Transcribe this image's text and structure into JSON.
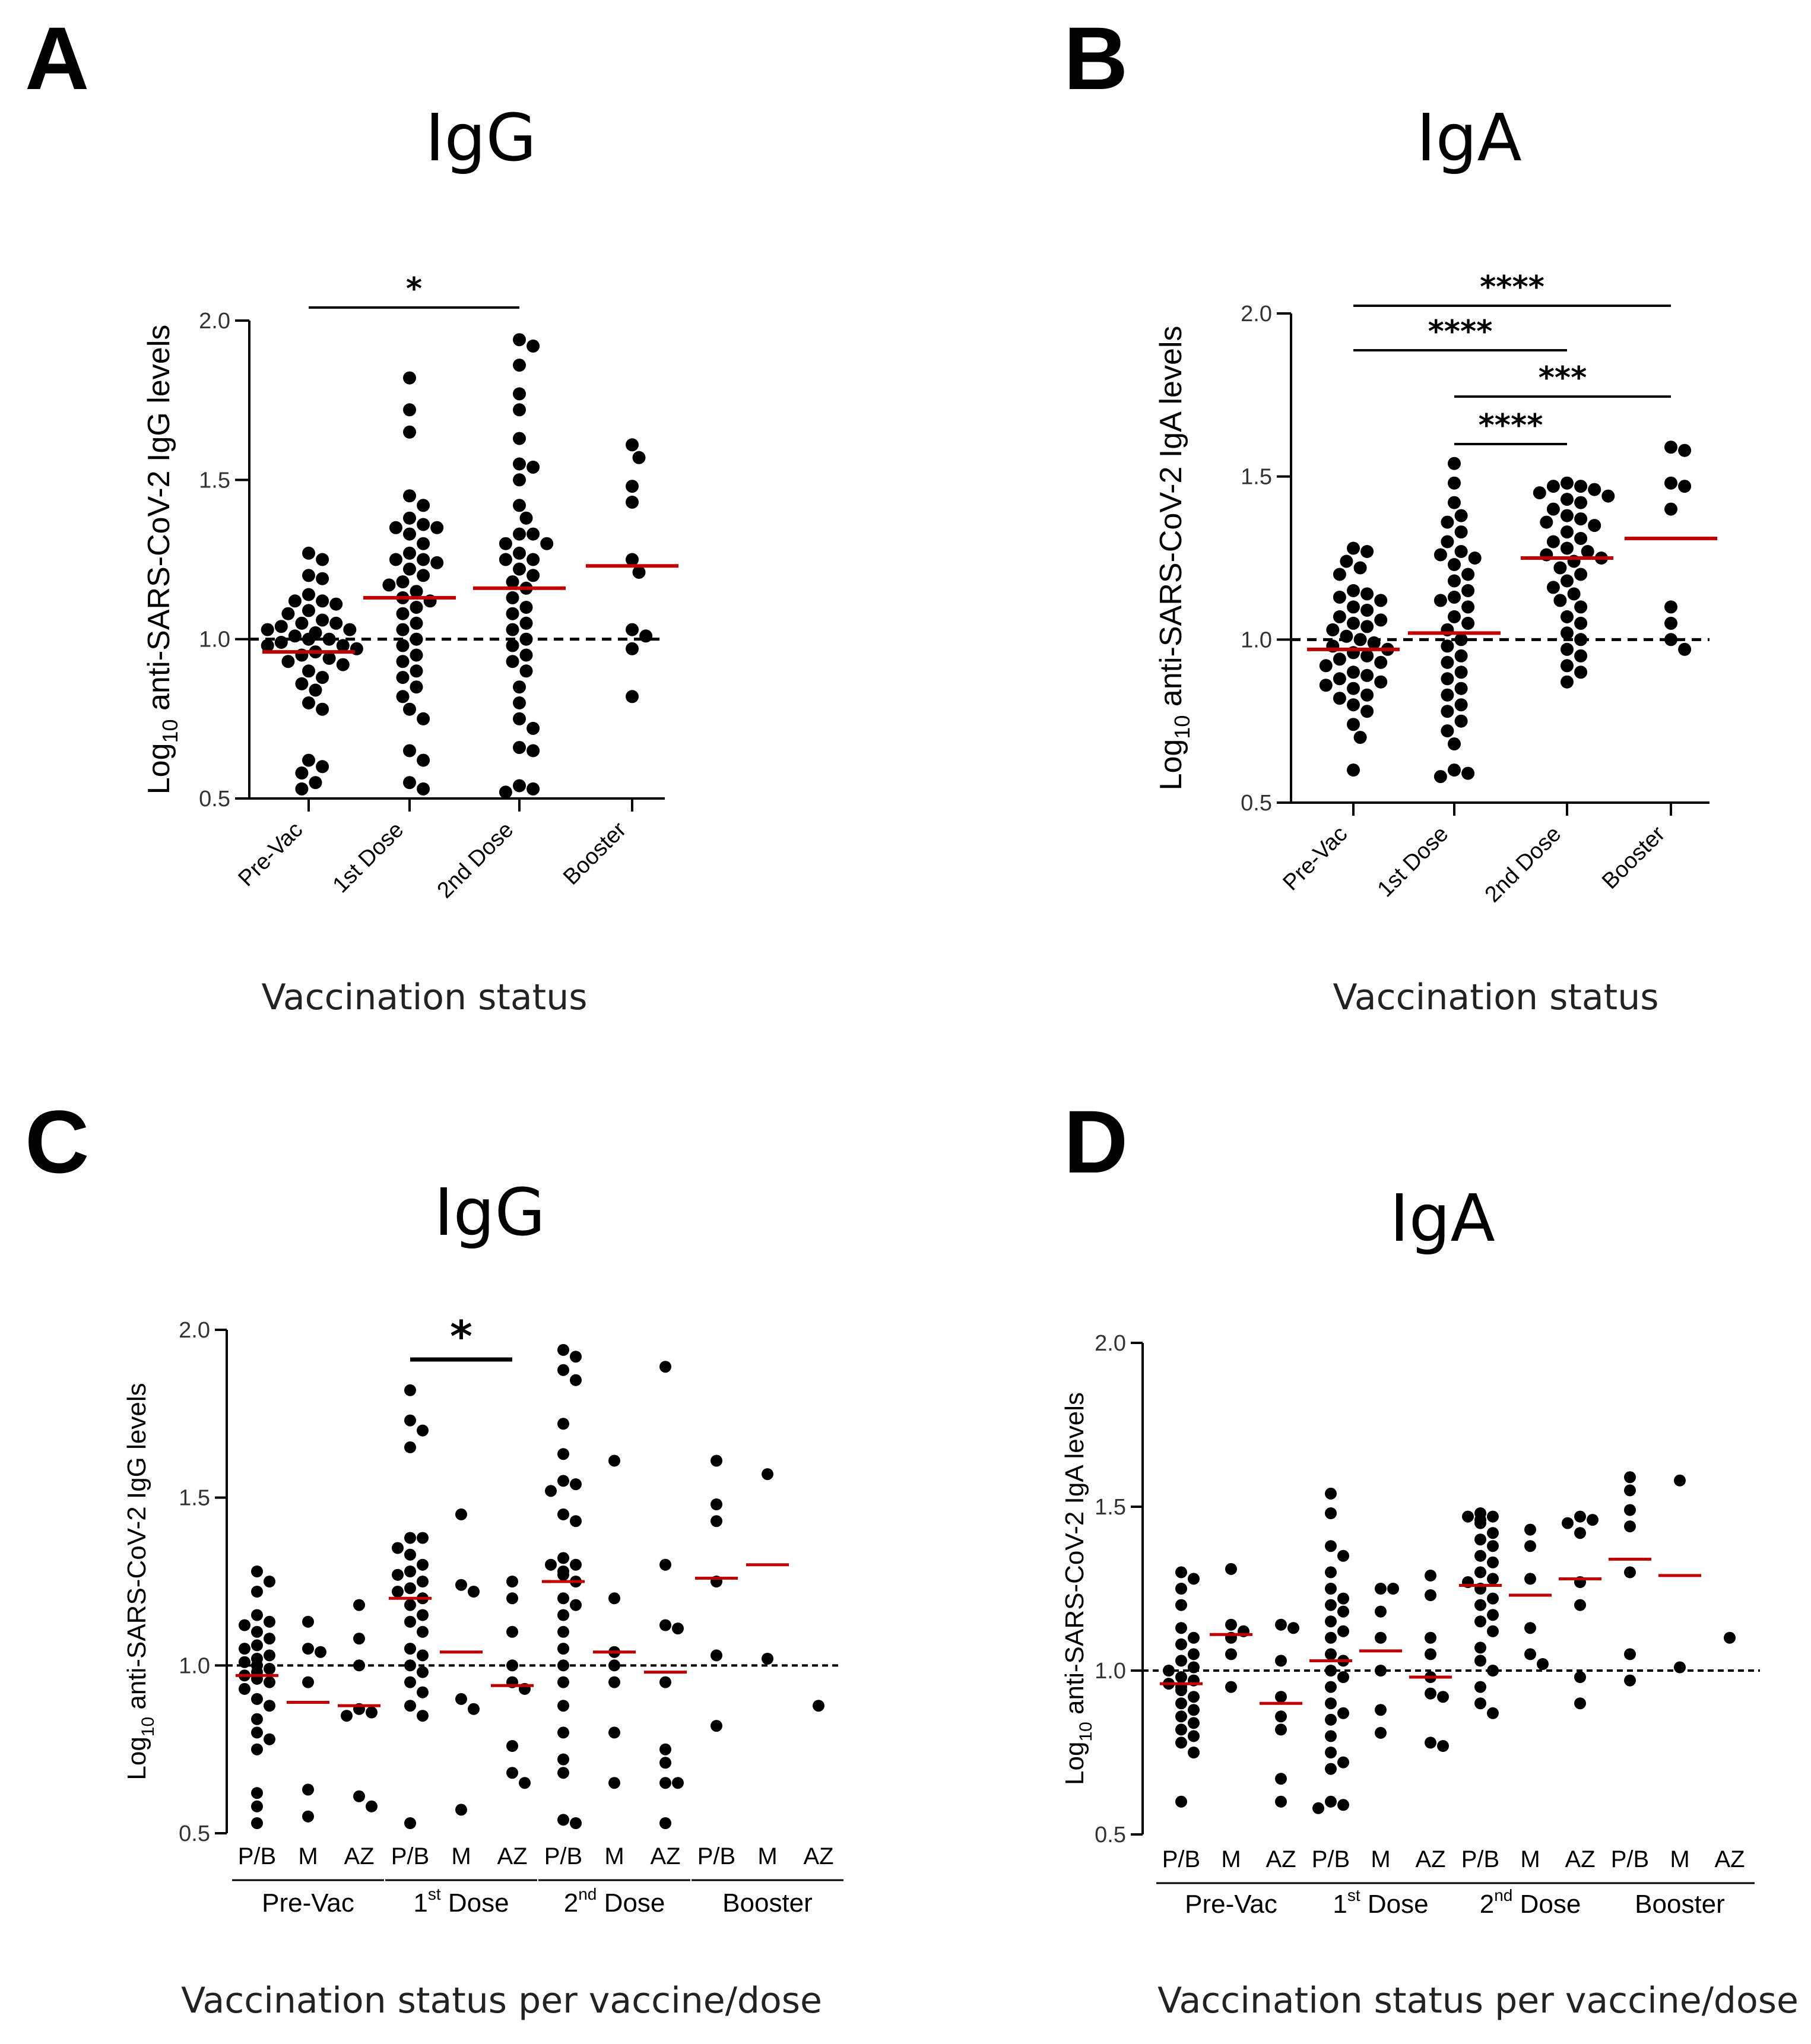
{
  "figure": {
    "colors": {
      "points": "#000000",
      "median": "#c00000",
      "axis": "#000000",
      "reference": "#000000"
    }
  },
  "chart_data": [
    {
      "panel": "A",
      "type": "scatter",
      "title": "IgG",
      "ylabel_prefix": "Log",
      "ylabel_sub": "10",
      "ylabel_rest": " anti-SARS-CoV-2 IgG levels",
      "xlabel": "Vaccination status",
      "ylim": [
        0.5,
        2.0
      ],
      "yticks": [
        "0.5",
        "1.0",
        "1.5",
        "2.0"
      ],
      "reference_line": 1.0,
      "categories": [
        "Pre-Vac",
        "1st Dose",
        "2nd Dose",
        "Booster"
      ],
      "series": [
        {
          "name": "Pre-Vac",
          "median": 0.96,
          "values": [
            1.27,
            1.25,
            1.2,
            1.19,
            1.14,
            1.12,
            1.12,
            1.11,
            1.09,
            1.08,
            1.06,
            1.05,
            1.05,
            1.04,
            1.03,
            1.03,
            1.02,
            1.01,
            1.0,
            1.0,
            0.99,
            0.98,
            0.98,
            0.97,
            0.96,
            0.95,
            0.94,
            0.93,
            0.92,
            0.9,
            0.88,
            0.86,
            0.84,
            0.8,
            0.78,
            0.62,
            0.6,
            0.58,
            0.55,
            0.53
          ]
        },
        {
          "name": "1st Dose",
          "median": 1.13,
          "values": [
            1.82,
            1.72,
            1.65,
            1.45,
            1.42,
            1.38,
            1.36,
            1.35,
            1.35,
            1.33,
            1.3,
            1.27,
            1.25,
            1.25,
            1.24,
            1.22,
            1.2,
            1.18,
            1.17,
            1.15,
            1.13,
            1.12,
            1.1,
            1.08,
            1.05,
            1.03,
            1.0,
            0.98,
            0.95,
            0.93,
            0.9,
            0.88,
            0.85,
            0.82,
            0.78,
            0.75,
            0.65,
            0.62,
            0.55,
            0.53
          ]
        },
        {
          "name": "2nd Dose",
          "median": 1.16,
          "values": [
            1.94,
            1.92,
            1.86,
            1.77,
            1.72,
            1.63,
            1.55,
            1.54,
            1.5,
            1.42,
            1.38,
            1.33,
            1.33,
            1.3,
            1.3,
            1.27,
            1.25,
            1.25,
            1.22,
            1.2,
            1.18,
            1.16,
            1.13,
            1.1,
            1.08,
            1.05,
            1.03,
            1.0,
            0.98,
            0.95,
            0.93,
            0.9,
            0.85,
            0.8,
            0.75,
            0.72,
            0.66,
            0.65,
            0.54,
            0.53,
            0.52
          ]
        },
        {
          "name": "Booster",
          "median": 1.23,
          "values": [
            1.61,
            1.57,
            1.48,
            1.43,
            1.25,
            1.21,
            1.03,
            1.01,
            0.97,
            0.82
          ]
        }
      ],
      "significance": [
        {
          "from": "Pre-Vac",
          "to": "2nd Dose",
          "label": "*"
        }
      ]
    },
    {
      "panel": "B",
      "type": "scatter",
      "title": "IgA",
      "ylabel_prefix": "Log",
      "ylabel_sub": "10",
      "ylabel_rest": " anti-SARS-CoV-2 IgA levels",
      "xlabel": "Vaccination status",
      "ylim": [
        0.5,
        2.0
      ],
      "yticks": [
        "0.5",
        "1.0",
        "1.5",
        "2.0"
      ],
      "reference_line": 1.0,
      "categories": [
        "Pre-Vac",
        "1st Dose",
        "2nd Dose",
        "Booster"
      ],
      "series": [
        {
          "name": "Pre-Vac",
          "median": 0.97,
          "values": [
            1.28,
            1.27,
            1.24,
            1.22,
            1.2,
            1.15,
            1.14,
            1.13,
            1.12,
            1.1,
            1.09,
            1.07,
            1.06,
            1.05,
            1.04,
            1.03,
            1.01,
            1.0,
            0.99,
            0.98,
            0.97,
            0.96,
            0.95,
            0.94,
            0.93,
            0.92,
            0.9,
            0.89,
            0.88,
            0.87,
            0.86,
            0.85,
            0.83,
            0.82,
            0.8,
            0.78,
            0.74,
            0.7,
            0.6
          ]
        },
        {
          "name": "1st Dose",
          "median": 1.02,
          "values": [
            1.54,
            1.48,
            1.42,
            1.38,
            1.36,
            1.33,
            1.3,
            1.27,
            1.26,
            1.25,
            1.23,
            1.2,
            1.18,
            1.15,
            1.13,
            1.12,
            1.1,
            1.07,
            1.05,
            1.03,
            1.0,
            0.98,
            0.95,
            0.93,
            0.9,
            0.88,
            0.85,
            0.83,
            0.8,
            0.78,
            0.75,
            0.72,
            0.68,
            0.6,
            0.59,
            0.58
          ]
        },
        {
          "name": "2nd Dose",
          "median": 1.25,
          "values": [
            1.48,
            1.47,
            1.47,
            1.46,
            1.45,
            1.44,
            1.43,
            1.42,
            1.4,
            1.38,
            1.37,
            1.36,
            1.35,
            1.33,
            1.31,
            1.3,
            1.28,
            1.27,
            1.26,
            1.25,
            1.24,
            1.22,
            1.2,
            1.18,
            1.16,
            1.14,
            1.12,
            1.1,
            1.07,
            1.05,
            1.02,
            1.0,
            0.97,
            0.95,
            0.92,
            0.9,
            0.87
          ]
        },
        {
          "name": "Booster",
          "median": 1.31,
          "values": [
            1.59,
            1.58,
            1.48,
            1.47,
            1.4,
            1.1,
            1.05,
            1.0,
            0.97
          ]
        }
      ],
      "significance": [
        {
          "from": "Pre-Vac",
          "to": "Booster",
          "label": "****"
        },
        {
          "from": "Pre-Vac",
          "to": "2nd Dose",
          "label": "****"
        },
        {
          "from": "1st Dose",
          "to": "Booster",
          "label": "***"
        },
        {
          "from": "1st Dose",
          "to": "2nd Dose",
          "label": "****"
        }
      ]
    },
    {
      "panel": "C",
      "type": "scatter",
      "title": "IgG",
      "ylabel_prefix": "Log",
      "ylabel_sub": "10",
      "ylabel_rest": " anti-SARS-CoV-2 IgG levels",
      "xlabel": "Vaccination status per vaccine/dose",
      "ylim": [
        0.5,
        2.0
      ],
      "yticks": [
        "0.5",
        "1.0",
        "1.5",
        "2.0"
      ],
      "reference_line": 1.0,
      "groups": [
        {
          "pre": "Pre-Vac",
          "sup": "",
          "post": ""
        },
        {
          "pre": "1",
          "sup": "st",
          "post": " Dose"
        },
        {
          "pre": "2",
          "sup": "nd",
          "post": " Dose"
        },
        {
          "pre": "Booster",
          "sup": "",
          "post": ""
        }
      ],
      "vaccines": [
        "P/B",
        "M",
        "AZ"
      ],
      "series": [
        {
          "name": "Pre-Vac P/B",
          "median": 0.97,
          "values": [
            1.28,
            1.25,
            1.22,
            1.15,
            1.13,
            1.12,
            1.1,
            1.08,
            1.06,
            1.05,
            1.03,
            1.02,
            1.01,
            1.0,
            0.99,
            0.98,
            0.97,
            0.96,
            0.95,
            0.93,
            0.9,
            0.88,
            0.84,
            0.8,
            0.78,
            0.75,
            0.62,
            0.58,
            0.53
          ]
        },
        {
          "name": "Pre-Vac M",
          "median": 0.89,
          "values": [
            1.13,
            1.05,
            1.04,
            0.95,
            0.63,
            0.55
          ]
        },
        {
          "name": "Pre-Vac AZ",
          "median": 0.88,
          "values": [
            1.18,
            1.08,
            1.0,
            0.87,
            0.86,
            0.85,
            0.61,
            0.58
          ]
        },
        {
          "name": "1st Dose P/B",
          "median": 1.2,
          "values": [
            1.82,
            1.73,
            1.7,
            1.65,
            1.38,
            1.38,
            1.35,
            1.33,
            1.3,
            1.28,
            1.27,
            1.25,
            1.23,
            1.22,
            1.2,
            1.18,
            1.15,
            1.13,
            1.1,
            1.05,
            1.03,
            1.0,
            0.98,
            0.95,
            0.92,
            0.88,
            0.85,
            0.53
          ]
        },
        {
          "name": "1st Dose M",
          "median": 1.04,
          "values": [
            1.45,
            1.24,
            1.22,
            0.9,
            0.87,
            0.57
          ]
        },
        {
          "name": "1st Dose AZ",
          "median": 0.94,
          "values": [
            1.25,
            1.2,
            1.1,
            1.0,
            0.95,
            0.93,
            0.76,
            0.68,
            0.65
          ]
        },
        {
          "name": "2nd Dose P/B",
          "median": 1.25,
          "values": [
            1.94,
            1.92,
            1.88,
            1.85,
            1.72,
            1.63,
            1.55,
            1.54,
            1.52,
            1.45,
            1.43,
            1.32,
            1.3,
            1.3,
            1.28,
            1.27,
            1.25,
            1.2,
            1.18,
            1.15,
            1.1,
            1.05,
            1.0,
            0.95,
            0.88,
            0.8,
            0.72,
            0.68,
            0.54,
            0.53
          ]
        },
        {
          "name": "2nd Dose M",
          "median": 1.04,
          "values": [
            1.61,
            1.2,
            1.04,
            1.0,
            0.95,
            0.8,
            0.65
          ]
        },
        {
          "name": "2nd Dose AZ",
          "median": 0.98,
          "values": [
            1.89,
            1.3,
            1.12,
            1.11,
            0.95,
            0.75,
            0.71,
            0.65,
            0.65,
            0.53
          ]
        },
        {
          "name": "Booster P/B",
          "median": 1.26,
          "values": [
            1.61,
            1.48,
            1.43,
            1.25,
            1.03,
            0.82
          ]
        },
        {
          "name": "Booster M",
          "median": 1.3,
          "values": [
            1.57,
            1.02
          ]
        },
        {
          "name": "Booster AZ",
          "median": null,
          "values": [
            0.88
          ]
        }
      ],
      "significance": [
        {
          "from": "1st Dose P/B",
          "to": "1st Dose AZ",
          "label": "*"
        }
      ]
    },
    {
      "panel": "D",
      "type": "scatter",
      "title": "IgA",
      "ylabel_prefix": "Log",
      "ylabel_sub": "10",
      "ylabel_rest": " anti-SARS-CoV-2 IgA levels",
      "xlabel": "Vaccination status per vaccine/dose",
      "ylim": [
        0.5,
        2.0
      ],
      "yticks": [
        "0.5",
        "1.0",
        "1.5",
        "2.0"
      ],
      "reference_line": 1.0,
      "groups": [
        {
          "pre": "Pre-Vac",
          "sup": "",
          "post": ""
        },
        {
          "pre": "1",
          "sup": "st",
          "post": " Dose"
        },
        {
          "pre": "2",
          "sup": "nd",
          "post": " Dose"
        },
        {
          "pre": "Booster",
          "sup": "",
          "post": ""
        }
      ],
      "vaccines": [
        "P/B",
        "M",
        "AZ"
      ],
      "series": [
        {
          "name": "Pre-Vac P/B",
          "median": 0.96,
          "values": [
            1.3,
            1.28,
            1.25,
            1.2,
            1.13,
            1.1,
            1.08,
            1.05,
            1.03,
            1.01,
            1.0,
            0.98,
            0.97,
            0.96,
            0.95,
            0.94,
            0.92,
            0.9,
            0.88,
            0.86,
            0.84,
            0.82,
            0.8,
            0.78,
            0.75,
            0.6
          ]
        },
        {
          "name": "Pre-Vac M",
          "median": 1.11,
          "values": [
            1.31,
            1.14,
            1.12,
            1.1,
            1.05,
            0.95
          ]
        },
        {
          "name": "Pre-Vac AZ",
          "median": 0.9,
          "values": [
            1.14,
            1.13,
            1.03,
            0.92,
            0.86,
            0.82,
            0.67,
            0.6
          ]
        },
        {
          "name": "1st Dose P/B",
          "median": 1.03,
          "values": [
            1.54,
            1.48,
            1.38,
            1.35,
            1.3,
            1.25,
            1.22,
            1.2,
            1.18,
            1.15,
            1.12,
            1.1,
            1.05,
            1.03,
            1.0,
            0.98,
            0.95,
            0.9,
            0.87,
            0.85,
            0.8,
            0.75,
            0.72,
            0.7,
            0.6,
            0.59,
            0.58
          ]
        },
        {
          "name": "1st Dose M",
          "median": 1.06,
          "values": [
            1.25,
            1.25,
            1.18,
            1.1,
            1.0,
            0.88,
            0.81
          ]
        },
        {
          "name": "1st Dose AZ",
          "median": 0.98,
          "values": [
            1.29,
            1.23,
            1.1,
            1.05,
            0.98,
            0.93,
            0.92,
            0.78,
            0.77
          ]
        },
        {
          "name": "2nd Dose P/B",
          "median": 1.26,
          "values": [
            1.48,
            1.47,
            1.47,
            1.46,
            1.45,
            1.42,
            1.4,
            1.38,
            1.35,
            1.33,
            1.3,
            1.28,
            1.27,
            1.25,
            1.22,
            1.2,
            1.17,
            1.15,
            1.12,
            1.07,
            1.03,
            1.0,
            0.95,
            0.9,
            0.87
          ]
        },
        {
          "name": "2nd Dose M",
          "median": 1.23,
          "values": [
            1.43,
            1.38,
            1.28,
            1.13,
            1.05,
            1.02
          ]
        },
        {
          "name": "2nd Dose AZ",
          "median": 1.28,
          "values": [
            1.47,
            1.46,
            1.45,
            1.42,
            1.27,
            1.2,
            0.98,
            0.9
          ]
        },
        {
          "name": "Booster P/B",
          "median": 1.34,
          "values": [
            1.59,
            1.55,
            1.49,
            1.44,
            1.3,
            1.05,
            0.97
          ]
        },
        {
          "name": "Booster M",
          "median": 1.29,
          "values": [
            1.58,
            1.01
          ]
        },
        {
          "name": "Booster AZ",
          "median": null,
          "values": [
            1.1
          ]
        }
      ],
      "significance": []
    }
  ]
}
